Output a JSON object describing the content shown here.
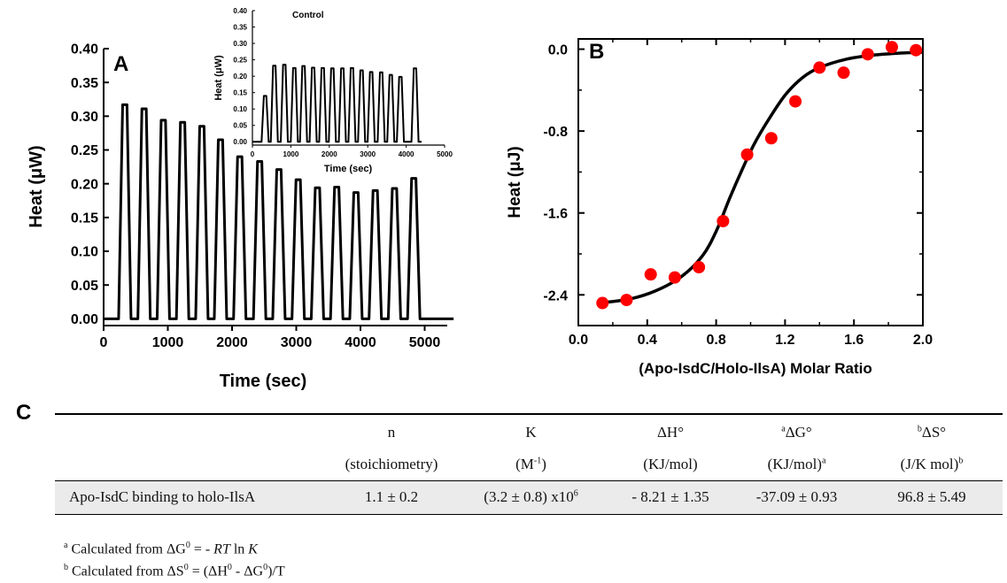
{
  "panel_labels": {
    "a": "A",
    "b": "B",
    "c": "C"
  },
  "chart_data": [
    {
      "id": "A",
      "type": "line",
      "title": "",
      "xlabel": "Time (sec)",
      "ylabel": "Heat (μW)",
      "xlim": [
        0,
        5600
      ],
      "ylim": [
        -0.01,
        0.4
      ],
      "x_ticks": [
        0,
        1000,
        2000,
        3000,
        4000,
        5000
      ],
      "y_ticks": [
        0.0,
        0.05,
        0.1,
        0.15,
        0.2,
        0.25,
        0.3,
        0.35,
        0.4
      ],
      "baseline": 0.0,
      "injections": {
        "times": [
          330,
          630,
          930,
          1230,
          1530,
          1820,
          2120,
          2430,
          2730,
          3030,
          3330,
          3630,
          3930,
          4230,
          4530,
          4830
        ],
        "peaks": [
          0.317,
          0.311,
          0.294,
          0.291,
          0.285,
          0.265,
          0.24,
          0.233,
          0.221,
          0.206,
          0.194,
          0.195,
          0.187,
          0.19,
          0.193,
          0.208
        ]
      },
      "trace_end": 5450
    },
    {
      "id": "A-inset",
      "type": "line",
      "title": "Control",
      "xlabel": "Time (sec)",
      "ylabel": "Heat (μW)",
      "xlim": [
        0,
        5000
      ],
      "ylim": [
        -0.01,
        0.4
      ],
      "x_ticks": [
        0,
        1000,
        2000,
        3000,
        4000,
        5000
      ],
      "y_ticks": [
        0.0,
        0.05,
        0.1,
        0.15,
        0.2,
        0.25,
        0.3,
        0.35,
        0.4
      ],
      "baseline": 0.0,
      "injections": {
        "times": [
          330,
          570,
          830,
          1090,
          1330,
          1580,
          1830,
          2080,
          2340,
          2590,
          2840,
          3090,
          3350,
          3600,
          3850,
          4230
        ],
        "peaks": [
          0.14,
          0.232,
          0.235,
          0.225,
          0.231,
          0.226,
          0.225,
          0.224,
          0.224,
          0.225,
          0.218,
          0.213,
          0.212,
          0.204,
          0.198,
          0.224
        ]
      },
      "trace_end": 4400
    },
    {
      "id": "B",
      "type": "scatter",
      "title": "",
      "xlabel": "(Apo-IsdC/Holo-IlsA) Molar Ratio",
      "ylabel": "Heat (μJ)",
      "xlim": [
        0.0,
        2.0
      ],
      "ylim": [
        -2.7,
        0.1
      ],
      "x_ticks": [
        0.0,
        0.4,
        0.8,
        1.2,
        1.6,
        2.0
      ],
      "x_tick_labels": [
        "0.0",
        "0.4",
        "0.8",
        "1.2",
        "1.6",
        "2.0"
      ],
      "y_ticks": [
        0.0,
        -0.8,
        -1.6,
        -2.4
      ],
      "y_tick_labels": [
        "0.0",
        "-0.8",
        "-1.6",
        "-2.4"
      ],
      "series": [
        {
          "type": "scatter",
          "color": "#ff0000",
          "x": [
            0.14,
            0.28,
            0.42,
            0.56,
            0.7,
            0.84,
            0.98,
            1.12,
            1.26,
            1.4,
            1.54,
            1.68,
            1.82,
            1.96
          ],
          "y": [
            -2.48,
            -2.45,
            -2.2,
            -2.23,
            -2.13,
            -1.68,
            -1.03,
            -0.87,
            -0.51,
            -0.18,
            -0.23,
            -0.05,
            0.02,
            -0.01
          ]
        },
        {
          "type": "line",
          "color": "#000000",
          "x": [
            0.12,
            0.3,
            0.45,
            0.6,
            0.72,
            0.8,
            0.88,
            0.95,
            1.02,
            1.1,
            1.2,
            1.3,
            1.4,
            1.55,
            1.7,
            1.85,
            2.0
          ],
          "y": [
            -2.48,
            -2.44,
            -2.36,
            -2.22,
            -2.02,
            -1.78,
            -1.45,
            -1.18,
            -0.93,
            -0.7,
            -0.45,
            -0.28,
            -0.18,
            -0.1,
            -0.06,
            -0.04,
            -0.03
          ]
        }
      ]
    }
  ],
  "table": {
    "headers": [
      {
        "line1": "n",
        "line2": "(stoichiometry)"
      },
      {
        "line1": "K",
        "line2_base": "(M",
        "line2_sup": "-1",
        "line2_end": ")"
      },
      {
        "line1": "ΔH°",
        "line2": "(KJ/mol)"
      },
      {
        "line1_sup": "a",
        "line1": "ΔG°",
        "line2": "(KJ/mol)",
        "line2_sup": "a"
      },
      {
        "line1_sup": "b",
        "line1": "ΔS°",
        "line2": "(J/K mol)",
        "line2_sup": "b"
      }
    ],
    "row": {
      "label": "Apo-IsdC binding to holo-IlsA",
      "n": "1.1 ± 0.2",
      "K_base": "(3.2 ± 0.8) x10",
      "K_exp": "6",
      "dH": "- 8.21 ± 1.35",
      "dG": "-37.09 ± 0.93",
      "dS": "96.8 ± 5.49"
    }
  },
  "footnotes": {
    "a_mark": "a",
    "a_prefix": " Calculated from ΔG",
    "a_zero": "0",
    "a_mid": " =  - ",
    "a_RT": "RT",
    "a_ln": " ln ",
    "a_K": "K",
    "b_mark": "b",
    "b_prefix": " Calculated from ΔS",
    "b_zero1": "0",
    "b_mid1": " = (ΔH",
    "b_zero2": "0",
    "b_mid2": " - ΔG",
    "b_zero3": "0",
    "b_end": ")/T"
  }
}
